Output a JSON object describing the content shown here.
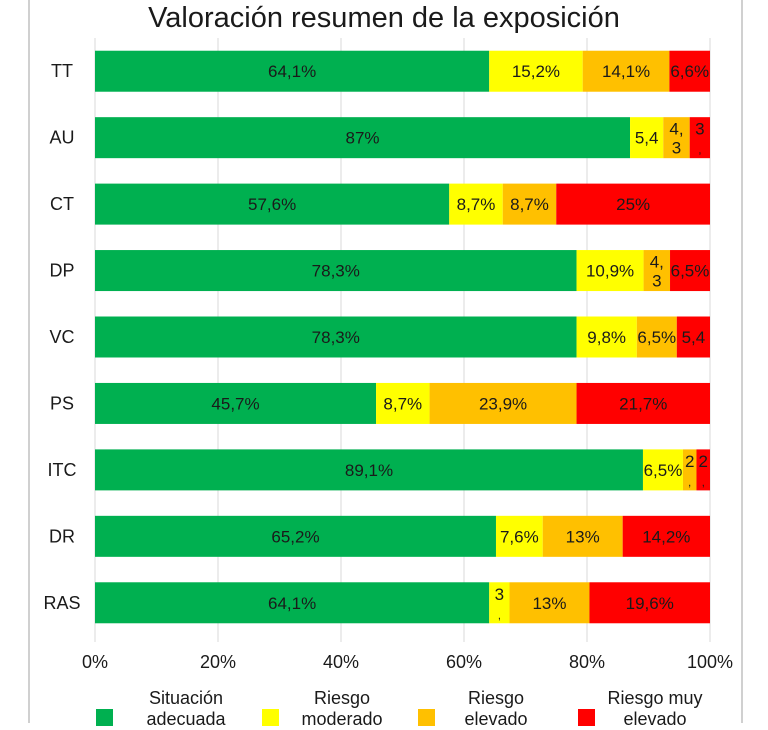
{
  "chart_data": {
    "type": "bar",
    "orientation": "horizontal",
    "stacked": true,
    "percent_stacked": true,
    "title": "Valoración resumen de la exposición",
    "xlabel": "",
    "ylabel": "",
    "xlim": [
      0,
      100
    ],
    "grid": true,
    "legend_position": "bottom",
    "categories": [
      "TT",
      "AU",
      "CT",
      "DP",
      "VC",
      "PS",
      "ITC",
      "DR",
      "RAS"
    ],
    "x_ticks": [
      "0%",
      "20%",
      "40%",
      "60%",
      "80%",
      "100%"
    ],
    "series": [
      {
        "name": "Situación adecuada",
        "color": "#00B050",
        "values": [
          64.1,
          87,
          57.6,
          78.3,
          78.3,
          45.7,
          89.1,
          65.2,
          64.1
        ],
        "labels": [
          "64,1%",
          "87%",
          "57,6%",
          "78,3%",
          "78,3%",
          "45,7%",
          "89,1%",
          "65,2%",
          "64,1%"
        ]
      },
      {
        "name": "Riesgo moderado",
        "color": "#FFFF00",
        "values": [
          15.2,
          5.4,
          8.7,
          10.9,
          9.8,
          8.7,
          6.5,
          7.6,
          3.3
        ],
        "labels": [
          "15,2%",
          "5,4",
          "8,7%",
          "10,9%",
          "9,8%",
          "8,7%",
          "6,5%",
          "7,6%",
          "3,"
        ]
      },
      {
        "name": "Riesgo elevado",
        "color": "#FFC000",
        "values": [
          14.1,
          4.3,
          8.7,
          4.3,
          6.5,
          23.9,
          2.2,
          13,
          13
        ],
        "labels": [
          "14,1%",
          "4,3",
          "8,7%",
          "4,3",
          "6,5%",
          "23,9%",
          "2,",
          "13%",
          "13%"
        ]
      },
      {
        "name": "Riesgo muy elevado",
        "color": "#FF0000",
        "values": [
          6.6,
          3.3,
          25,
          6.5,
          5.4,
          21.7,
          2.2,
          14.2,
          19.6
        ],
        "labels": [
          "6,6%",
          "3,",
          "25%",
          "6,5%",
          "5,4",
          "21,7%",
          "2,",
          "14,2%",
          "19,6%"
        ]
      }
    ]
  },
  "legend": [
    {
      "line1": "Situación",
      "line2": "adecuada",
      "color": "#00B050"
    },
    {
      "line1": "Riesgo",
      "line2": "moderado",
      "color": "#FFFF00"
    },
    {
      "line1": "Riesgo",
      "line2": "elevado",
      "color": "#FFC000"
    },
    {
      "line1": "Riesgo muy",
      "line2": "elevado",
      "color": "#FF0000"
    }
  ]
}
